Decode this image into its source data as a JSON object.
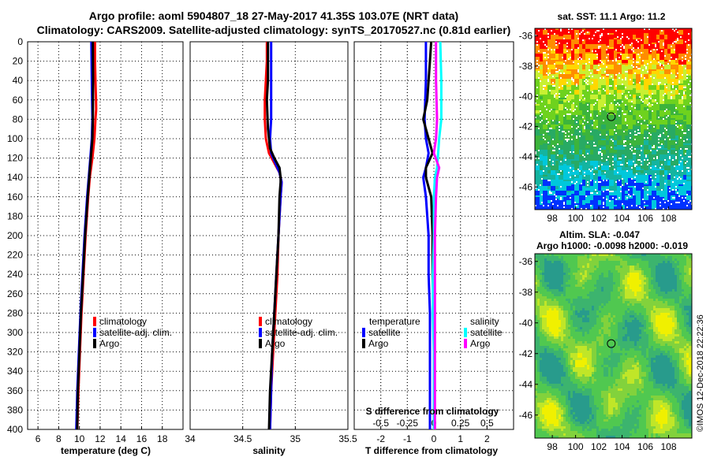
{
  "title": {
    "line1": "Argo profile: aoml 5904807_18 27-May-2017 41.35S 103.07E (NRT data)",
    "line2": "Climatology: CARS2009. Satellite-adjusted climatology: synTS_20170527.nc (0.81d earlier)"
  },
  "colors": {
    "climatology": "#ff0000",
    "satellite": "#0000ff",
    "argo": "#000000",
    "sal_satellite": "#00ffff",
    "sal_argo": "#ff00ff"
  },
  "chart_data": [
    {
      "type": "line",
      "name": "temperature-profile",
      "xlabel": "temperature (deg C)",
      "ylabel": "",
      "xlim": [
        5,
        20
      ],
      "ylim": [
        400,
        0
      ],
      "xticks": [
        6,
        8,
        10,
        12,
        14,
        16,
        18
      ],
      "yticks": [
        0,
        20,
        40,
        60,
        80,
        100,
        120,
        140,
        160,
        180,
        200,
        220,
        240,
        260,
        280,
        300,
        320,
        340,
        360,
        380,
        400
      ],
      "grid": true,
      "legend": {
        "position": "lower-right",
        "entries": [
          "climatology",
          "satellite-adj. clim.",
          "Argo"
        ]
      },
      "series": [
        {
          "name": "climatology",
          "color": "#ff0000",
          "depth": [
            0,
            20,
            40,
            60,
            70,
            80,
            100,
            120,
            140,
            160,
            200,
            240,
            280,
            320,
            360,
            400
          ],
          "values": [
            11.5,
            11.5,
            11.55,
            11.6,
            11.62,
            11.55,
            11.45,
            11.25,
            11.0,
            10.85,
            10.6,
            10.4,
            10.2,
            10.05,
            9.9,
            9.8
          ]
        },
        {
          "name": "satellite-adj. clim.",
          "color": "#0000ff",
          "depth": [
            0,
            40,
            80,
            100,
            120,
            140,
            160,
            200,
            240,
            280,
            320,
            360,
            400
          ],
          "values": [
            11.15,
            11.2,
            11.25,
            11.2,
            11.05,
            10.9,
            10.75,
            10.5,
            10.3,
            10.1,
            9.95,
            9.8,
            9.7
          ]
        },
        {
          "name": "Argo",
          "color": "#000000",
          "depth": [
            0,
            40,
            80,
            100,
            120,
            140,
            160,
            200,
            240,
            280,
            320,
            360,
            400
          ],
          "values": [
            11.3,
            11.32,
            11.3,
            11.25,
            11.1,
            10.95,
            10.8,
            10.55,
            10.35,
            10.15,
            10.0,
            9.85,
            9.78
          ]
        }
      ]
    },
    {
      "type": "line",
      "name": "salinity-profile",
      "xlabel": "salinity",
      "ylabel": "",
      "xlim": [
        34,
        35.5
      ],
      "ylim": [
        400,
        0
      ],
      "xticks": [
        34,
        34.5,
        35,
        35.5
      ],
      "grid": true,
      "legend": {
        "position": "lower-right",
        "entries": [
          "climatology",
          "satellite-adj. clim.",
          "Argo"
        ]
      },
      "series": [
        {
          "name": "climatology",
          "color": "#ff0000",
          "depth": [
            0,
            20,
            40,
            60,
            80,
            100,
            115,
            125,
            135,
            145,
            160,
            200,
            240,
            280,
            320,
            360,
            400
          ],
          "values": [
            34.73,
            34.73,
            34.72,
            34.71,
            34.71,
            34.72,
            34.75,
            34.8,
            34.85,
            34.87,
            34.86,
            34.84,
            34.83,
            34.81,
            34.79,
            34.77,
            34.76
          ]
        },
        {
          "name": "satellite-adj. clim.",
          "color": "#0000ff",
          "depth": [
            0,
            40,
            80,
            100,
            115,
            125,
            135,
            145,
            160,
            200,
            240,
            280,
            320,
            360,
            400
          ],
          "values": [
            34.77,
            34.77,
            34.77,
            34.76,
            34.77,
            34.81,
            34.85,
            34.87,
            34.86,
            34.84,
            34.82,
            34.8,
            34.78,
            34.77,
            34.76
          ]
        },
        {
          "name": "Argo",
          "color": "#000000",
          "depth": [
            0,
            40,
            60,
            90,
            110,
            120,
            130,
            140,
            145,
            160,
            200,
            240,
            280,
            320,
            360,
            400
          ],
          "values": [
            34.74,
            34.74,
            34.73,
            34.74,
            34.76,
            34.8,
            34.85,
            34.86,
            34.86,
            34.85,
            34.84,
            34.82,
            34.8,
            34.78,
            34.76,
            34.75
          ]
        }
      ]
    },
    {
      "type": "line",
      "name": "difference-profile",
      "xlabel": "T difference from climatology",
      "xlabel_top": "S difference from climatology",
      "xlim": [
        -3,
        3
      ],
      "ylim": [
        400,
        0
      ],
      "xticks": [
        -2,
        -1,
        0,
        1,
        2
      ],
      "xtick_labels": [
        "-2",
        "-1",
        "0",
        "1",
        "2"
      ],
      "s_xticks": [
        -0.5,
        -0.25,
        0,
        0.25,
        0.5
      ],
      "s_xtick_labels": [
        "-0.5",
        "-0.25",
        "0",
        "0.25",
        "0.5"
      ],
      "grid": true,
      "legend": {
        "position": "lower",
        "temperature_title": "temperature",
        "salinity_title": "salinity",
        "entries": [
          "satellite",
          "Argo",
          "satellite",
          "Argo"
        ]
      },
      "series": [
        {
          "name": "T satellite",
          "color": "#0000ff",
          "depth": [
            0,
            40,
            80,
            100,
            115,
            130,
            140,
            160,
            200,
            240,
            280,
            320,
            360,
            400
          ],
          "values": [
            -0.3,
            -0.3,
            -0.35,
            -0.3,
            -0.2,
            -0.3,
            -0.4,
            -0.3,
            -0.2,
            -0.2,
            -0.15,
            -0.15,
            -0.15,
            -0.15
          ]
        },
        {
          "name": "T Argo",
          "color": "#000000",
          "depth": [
            0,
            20,
            60,
            80,
            100,
            115,
            130,
            140,
            160,
            200,
            240,
            280,
            320,
            360,
            400
          ],
          "values": [
            -0.1,
            -0.15,
            -0.25,
            -0.4,
            -0.2,
            -0.05,
            -0.3,
            -0.3,
            -0.1,
            -0.05,
            -0.05,
            0.0,
            0.0,
            0.0,
            0.0
          ]
        },
        {
          "name": "S satellite",
          "color": "#00ffff",
          "depth": [
            0,
            40,
            80,
            100,
            115,
            130,
            140,
            160,
            200,
            240,
            280,
            320,
            360,
            400
          ],
          "values": [
            0.06,
            0.07,
            0.07,
            0.05,
            0.04,
            0.03,
            0.01,
            0.0,
            0.0,
            -0.01,
            -0.01,
            0.0,
            0.0,
            0.0
          ]
        },
        {
          "name": "S Argo",
          "color": "#ff00ff",
          "depth": [
            0,
            40,
            80,
            100,
            115,
            130,
            140,
            160,
            200,
            240,
            280,
            320,
            360,
            400
          ],
          "values": [
            0.02,
            0.02,
            0.03,
            0.02,
            0.0,
            0.05,
            0.03,
            0.02,
            0.01,
            0.01,
            0.01,
            0.01,
            0.01,
            0.01
          ]
        }
      ]
    },
    {
      "type": "heatmap",
      "name": "sst-map",
      "title": "sat. SST: 11.1 Argo: 11.2",
      "xlim": [
        96.5,
        110
      ],
      "ylim": [
        -47.5,
        -35.5
      ],
      "xticks": [
        98,
        100,
        102,
        104,
        106,
        108
      ],
      "yticks": [
        -36,
        -38,
        -40,
        -42,
        -44,
        -46
      ],
      "marker": {
        "lon": 103.07,
        "lat": -41.35
      }
    },
    {
      "type": "heatmap",
      "name": "sla-map",
      "title": "Altim. SLA: -0.047",
      "subtitle": "Argo h1000: -0.0098 h2000: -0.019",
      "xlim": [
        96.5,
        110
      ],
      "ylim": [
        -47.5,
        -35.5
      ],
      "xticks": [
        98,
        100,
        102,
        104,
        106,
        108
      ],
      "yticks": [
        -36,
        -38,
        -40,
        -42,
        -44,
        -46
      ],
      "marker": {
        "lon": 103.07,
        "lat": -41.35
      }
    }
  ],
  "credit": "©IMOS 12-Dec-2018 22:22:36"
}
